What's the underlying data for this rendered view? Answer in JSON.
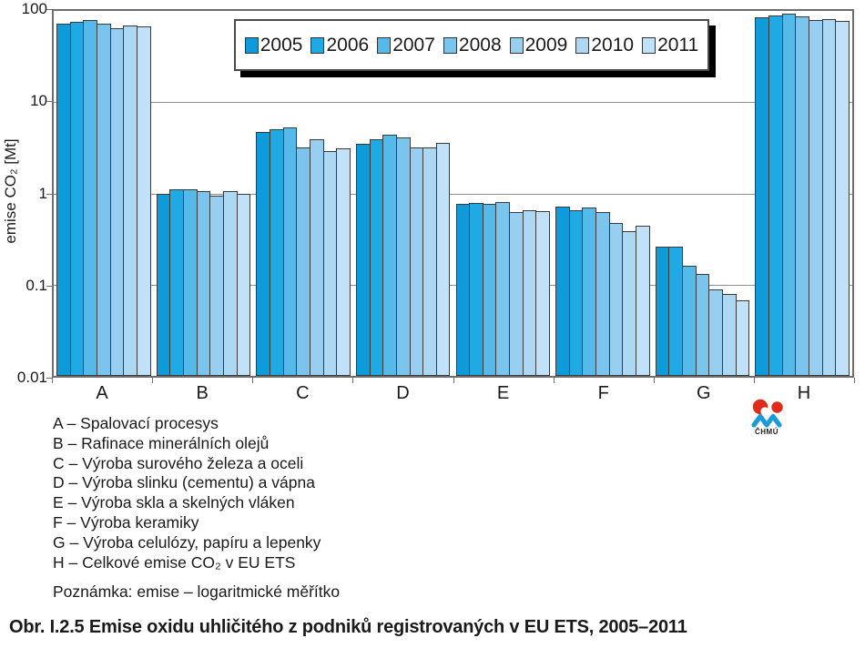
{
  "chart_data": {
    "type": "bar",
    "scale_y": "log10",
    "ylabel": "emise CO₂ [Mt]",
    "ylim": [
      0.01,
      100
    ],
    "y_tick_labels": [
      "100",
      "10",
      "1",
      "0.1",
      "0.01"
    ],
    "grid": "horizontal",
    "legend_position": "top-center",
    "categories": [
      "A",
      "B",
      "C",
      "D",
      "E",
      "F",
      "G",
      "H"
    ],
    "series": [
      {
        "name": "2005",
        "color": "#0E9BDA",
        "values": [
          72,
          1.0,
          4.7,
          3.5,
          0.77,
          0.72,
          0.26,
          85
        ]
      },
      {
        "name": "2006",
        "color": "#1FAAE3",
        "values": [
          76,
          1.1,
          5.0,
          3.9,
          0.79,
          0.66,
          0.26,
          90
        ]
      },
      {
        "name": "2007",
        "color": "#55B9E9",
        "values": [
          79,
          1.1,
          5.3,
          4.4,
          0.77,
          0.7,
          0.16,
          93
        ]
      },
      {
        "name": "2008",
        "color": "#7BC4ED",
        "values": [
          72,
          1.05,
          3.2,
          4.1,
          0.81,
          0.62,
          0.13,
          87
        ]
      },
      {
        "name": "2009",
        "color": "#98CFF0",
        "values": [
          65,
          0.95,
          3.9,
          3.2,
          0.62,
          0.47,
          0.088,
          79
        ]
      },
      {
        "name": "2010",
        "color": "#ACD8F4",
        "values": [
          70,
          1.07,
          2.9,
          3.2,
          0.66,
          0.39,
          0.079,
          82
        ]
      },
      {
        "name": "2011",
        "color": "#C0E1F7",
        "values": [
          67,
          1.0,
          3.1,
          3.6,
          0.64,
          0.44,
          0.068,
          78
        ]
      }
    ]
  },
  "y_axis": {
    "title": "emise CO₂ [Mt]"
  },
  "category_legend": {
    "lines": [
      "A – Spalovací procesys",
      "B – Rafinace minerálních olejů",
      "C – Výroba surového železa a oceli",
      "D – Výroba slinku (cementu) a vápna",
      "E – Výroba skla a skelných vláken",
      "F – Výroba keramiky",
      "G – Výroba celulózy, papíru a lepenky",
      "H – Celkové emise CO₂ v EU ETS"
    ],
    "note": "Poznámka: emise – logaritmické měřítko"
  },
  "logo": {
    "name": "ČHMÚ",
    "red": "#e02a1a",
    "blue": "#1b9cd8"
  },
  "caption": "Obr. I.2.5  Emise oxidu uhličitého z podniků registrovaných v EU ETS, 2005–2011"
}
